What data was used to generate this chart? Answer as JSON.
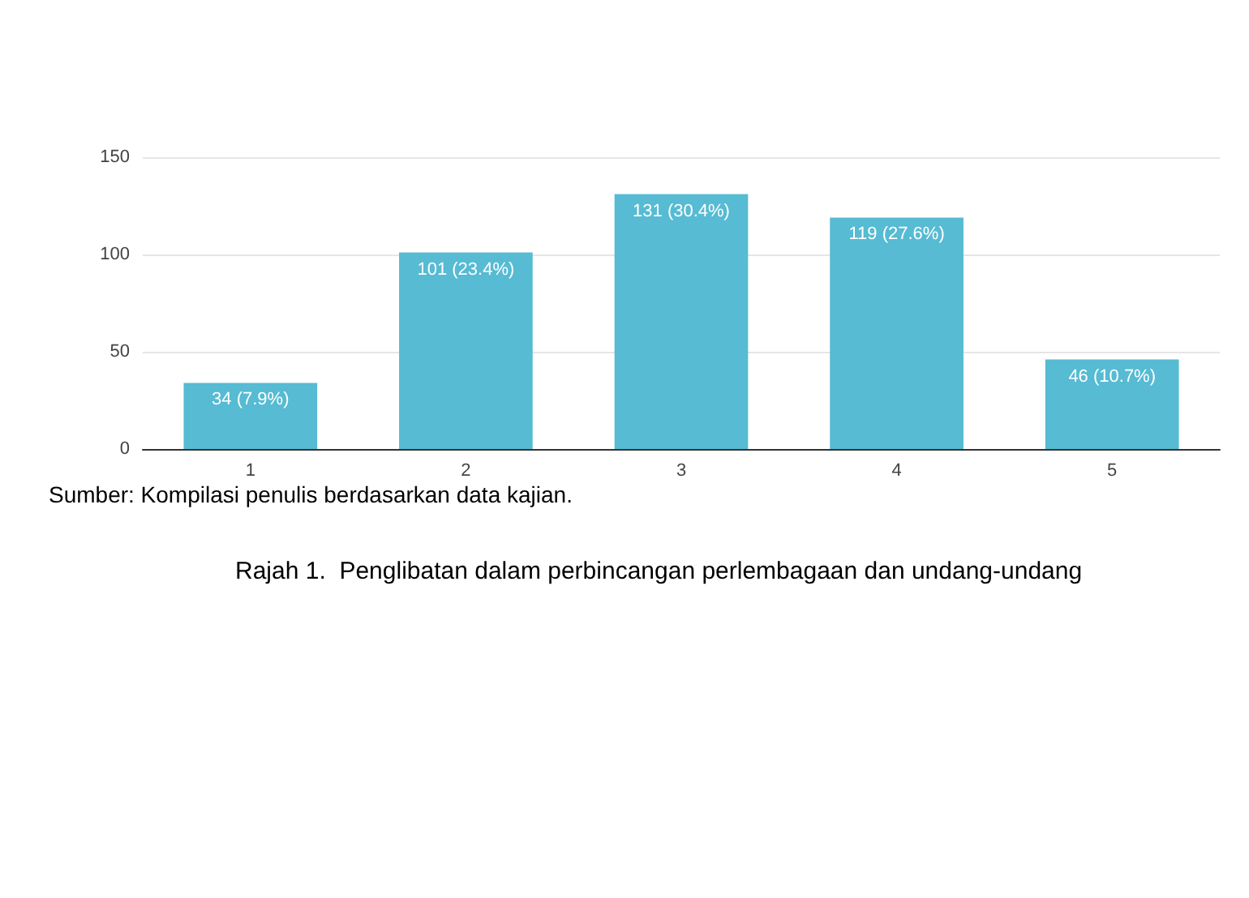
{
  "chart_data": {
    "type": "bar",
    "title": "Rajah 1.  Penglibatan dalam perbincangan perlembagaan dan undang-undang",
    "annotations": [
      "Sumber: Kompilasi penulis berdasarkan data kajian."
    ],
    "categories": [
      "1",
      "2",
      "3",
      "4",
      "5"
    ],
    "values": [
      34,
      101,
      131,
      119,
      46
    ],
    "value_labels": [
      "34 (7.9%)",
      "101 (23.4%)",
      "131 (30.4%)",
      "119 (27.6%)",
      "46 (10.7%)"
    ],
    "color": "#56bbd3",
    "ylim": [
      0,
      150
    ],
    "yticks": [
      0,
      50,
      100,
      150
    ],
    "grid": "y"
  }
}
